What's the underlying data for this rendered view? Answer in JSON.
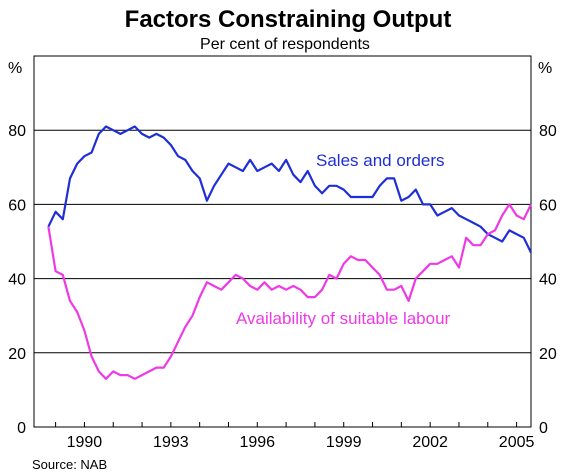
{
  "chart_data": {
    "type": "line",
    "title": "Factors Constraining Output",
    "subtitle": "Per cent of respondents",
    "ylabel_left": "%",
    "ylabel_right": "%",
    "source": "Source: NAB",
    "ylim": [
      0,
      100
    ],
    "yticks": [
      0,
      20,
      40,
      60,
      80
    ],
    "xlim": [
      1988.25,
      2005.5
    ],
    "xticks": [
      {
        "value": 1990,
        "label": "1990"
      },
      {
        "value": 1993,
        "label": "1993"
      },
      {
        "value": 1996,
        "label": "1996"
      },
      {
        "value": 1999,
        "label": "1999"
      },
      {
        "value": 2002,
        "label": "2002"
      },
      {
        "value": 2005,
        "label": "2005"
      }
    ],
    "grid": true,
    "series": [
      {
        "name": "Sales and orders",
        "color": "#1f2fd6",
        "x": [
          1988.75,
          1989.0,
          1989.25,
          1989.5,
          1989.75,
          1990.0,
          1990.25,
          1990.5,
          1990.75,
          1991.0,
          1991.25,
          1991.5,
          1991.75,
          1992.0,
          1992.25,
          1992.5,
          1992.75,
          1993.0,
          1993.25,
          1993.5,
          1993.75,
          1994.0,
          1994.25,
          1994.5,
          1994.75,
          1995.0,
          1995.25,
          1995.5,
          1995.75,
          1996.0,
          1996.25,
          1996.5,
          1996.75,
          1997.0,
          1997.25,
          1997.5,
          1997.75,
          1998.0,
          1998.25,
          1998.5,
          1998.75,
          1999.0,
          1999.25,
          1999.5,
          1999.75,
          2000.0,
          2000.25,
          2000.5,
          2000.75,
          2001.0,
          2001.25,
          2001.5,
          2001.75,
          2002.0,
          2002.25,
          2002.5,
          2002.75,
          2003.0,
          2003.25,
          2003.5,
          2003.75,
          2004.0,
          2004.25,
          2004.5,
          2004.75,
          2005.0,
          2005.25,
          2005.5
        ],
        "values": [
          54,
          58,
          56,
          67,
          71,
          73,
          74,
          79,
          81,
          80,
          79,
          80,
          81,
          79,
          78,
          79,
          78,
          76,
          73,
          72,
          69,
          67,
          61,
          65,
          68,
          71,
          70,
          69,
          72,
          69,
          70,
          71,
          69,
          72,
          68,
          66,
          69,
          65,
          63,
          65,
          65,
          64,
          62,
          62,
          62,
          62,
          65,
          67,
          67,
          61,
          62,
          64,
          60,
          60,
          57,
          58,
          59,
          57,
          56,
          55,
          54,
          52,
          51,
          50,
          53,
          52,
          51,
          47
        ]
      },
      {
        "name": "Availability of suitable labour",
        "color": "#ee3ae6",
        "x": [
          1988.75,
          1989.0,
          1989.25,
          1989.5,
          1989.75,
          1990.0,
          1990.25,
          1990.5,
          1990.75,
          1991.0,
          1991.25,
          1991.5,
          1991.75,
          1992.0,
          1992.25,
          1992.5,
          1992.75,
          1993.0,
          1993.25,
          1993.5,
          1993.75,
          1994.0,
          1994.25,
          1994.5,
          1994.75,
          1995.0,
          1995.25,
          1995.5,
          1995.75,
          1996.0,
          1996.25,
          1996.5,
          1996.75,
          1997.0,
          1997.25,
          1997.5,
          1997.75,
          1998.0,
          1998.25,
          1998.5,
          1998.75,
          1999.0,
          1999.25,
          1999.5,
          1999.75,
          2000.0,
          2000.25,
          2000.5,
          2000.75,
          2001.0,
          2001.25,
          2001.5,
          2001.75,
          2002.0,
          2002.25,
          2002.5,
          2002.75,
          2003.0,
          2003.25,
          2003.5,
          2003.75,
          2004.0,
          2004.25,
          2004.5,
          2004.75,
          2005.0,
          2005.25,
          2005.5
        ],
        "values": [
          54,
          42,
          41,
          34,
          31,
          26,
          19,
          15,
          13,
          15,
          14,
          14,
          13,
          14,
          15,
          16,
          16,
          19,
          23,
          27,
          30,
          35,
          39,
          38,
          37,
          39,
          41,
          40,
          38,
          37,
          39,
          37,
          38,
          37,
          38,
          37,
          35,
          35,
          37,
          41,
          40,
          44,
          46,
          45,
          45,
          43,
          41,
          37,
          37,
          38,
          34,
          40,
          42,
          44,
          44,
          45,
          46,
          43,
          51,
          49,
          49,
          52,
          53,
          57,
          60,
          57,
          56,
          60
        ]
      }
    ],
    "annotations": [
      {
        "text": "Sales and orders",
        "series": 0
      },
      {
        "text": "Availability of suitable labour",
        "series": 1
      }
    ]
  }
}
